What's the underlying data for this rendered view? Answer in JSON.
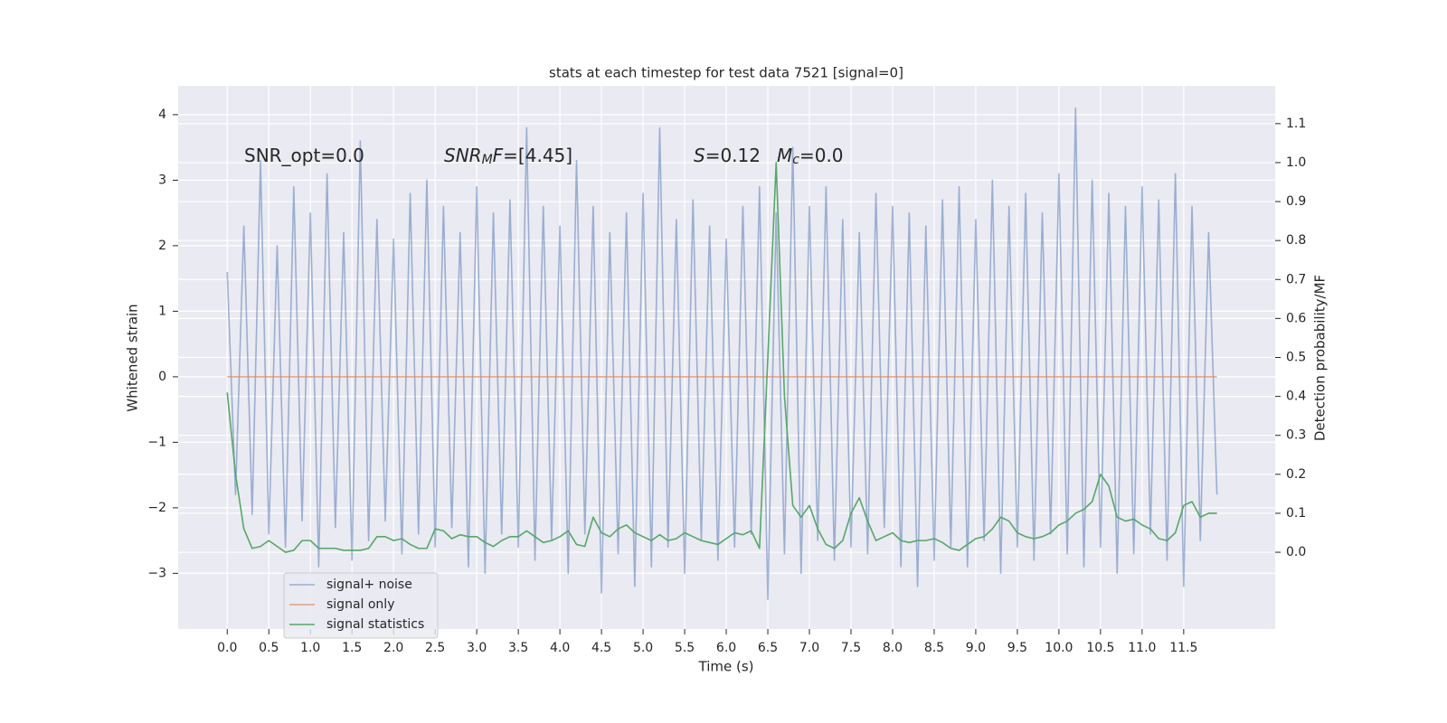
{
  "chart_data": {
    "type": "line",
    "title": "stats at each timestep for test data 7521 [signal=0]",
    "xlabel": "Time (s)",
    "ylabel": "Whitened strain",
    "y2label": "Detection probability/MF",
    "x": [
      0,
      0.1,
      0.2,
      0.3,
      0.4,
      0.5,
      0.6,
      0.7,
      0.8,
      0.9,
      1,
      1.1,
      1.2,
      1.3,
      1.4,
      1.5,
      1.6,
      1.7,
      1.8,
      1.9,
      2,
      2.1,
      2.2,
      2.3,
      2.4,
      2.5,
      2.6,
      2.7,
      2.8,
      2.9,
      3,
      3.1,
      3.2,
      3.3,
      3.4,
      3.5,
      3.6,
      3.7,
      3.8,
      3.9,
      4,
      4.1,
      4.2,
      4.3,
      4.4,
      4.5,
      4.6,
      4.7,
      4.8,
      4.9,
      5,
      5.1,
      5.2,
      5.3,
      5.4,
      5.5,
      5.6,
      5.7,
      5.8,
      5.9,
      6,
      6.1,
      6.2,
      6.3,
      6.4,
      6.5,
      6.6,
      6.7,
      6.8,
      6.9,
      7,
      7.1,
      7.2,
      7.3,
      7.4,
      7.5,
      7.6,
      7.7,
      7.8,
      7.9,
      8,
      8.1,
      8.2,
      8.3,
      8.4,
      8.5,
      8.6,
      8.7,
      8.8,
      8.9,
      9,
      9.1,
      9.2,
      9.3,
      9.4,
      9.5,
      9.6,
      9.7,
      9.8,
      9.9,
      10,
      10.1,
      10.2,
      10.3,
      10.4,
      10.5,
      10.6,
      10.7,
      10.8,
      10.9,
      11,
      11.1,
      11.2,
      11.3,
      11.4,
      11.5,
      11.6,
      11.7,
      11.8,
      11.9
    ],
    "series": [
      {
        "name": "signal+ noise",
        "color": "#4c72b0",
        "alpha": 0.5,
        "values": [
          1.6,
          -1.8,
          2.3,
          -2.1,
          3.3,
          -2.4,
          2.0,
          -2.6,
          2.9,
          -2.2,
          2.5,
          -2.9,
          3.1,
          -2.3,
          2.2,
          -2.8,
          3.6,
          -2.5,
          2.4,
          -2.2,
          2.1,
          -2.7,
          2.8,
          -2.4,
          3.0,
          -2.6,
          2.6,
          -2.3,
          2.2,
          -2.9,
          2.9,
          -3.0,
          2.5,
          -2.4,
          2.7,
          -2.6,
          3.8,
          -2.8,
          2.6,
          -2.5,
          2.3,
          -3.0,
          3.3,
          -2.4,
          2.6,
          -3.3,
          2.2,
          -2.7,
          2.5,
          -3.2,
          2.8,
          -2.9,
          3.8,
          -2.6,
          2.4,
          -3.0,
          2.7,
          -2.5,
          2.3,
          -2.8,
          2.1,
          -2.6,
          2.6,
          -2.4,
          2.9,
          -3.4,
          2.5,
          -2.7,
          3.5,
          -3.0,
          2.6,
          -2.5,
          2.9,
          -2.8,
          2.4,
          -2.6,
          2.2,
          -2.7,
          2.8,
          -2.3,
          2.6,
          -2.9,
          2.5,
          -3.2,
          2.3,
          -2.8,
          2.7,
          -2.6,
          2.9,
          -2.9,
          2.4,
          -2.5,
          3.0,
          -3.0,
          2.6,
          -2.6,
          2.8,
          -2.8,
          2.5,
          -2.4,
          3.1,
          -2.7,
          4.1,
          -2.9,
          3.0,
          -2.6,
          2.8,
          -3.0,
          2.6,
          -2.7,
          2.9,
          -2.4,
          2.7,
          -2.8,
          3.1,
          -3.2,
          2.6,
          -2.5,
          2.2,
          -1.8
        ]
      },
      {
        "name": "signal only",
        "color": "#dd8452",
        "alpha": 0.7,
        "values": [
          0,
          0,
          0,
          0,
          0,
          0,
          0,
          0,
          0,
          0,
          0,
          0,
          0,
          0,
          0,
          0,
          0,
          0,
          0,
          0,
          0,
          0,
          0,
          0,
          0,
          0,
          0,
          0,
          0,
          0,
          0,
          0,
          0,
          0,
          0,
          0,
          0,
          0,
          0,
          0,
          0,
          0,
          0,
          0,
          0,
          0,
          0,
          0,
          0,
          0,
          0,
          0,
          0,
          0,
          0,
          0,
          0,
          0,
          0,
          0,
          0,
          0,
          0,
          0,
          0,
          0,
          0,
          0,
          0,
          0,
          0,
          0,
          0,
          0,
          0,
          0,
          0,
          0,
          0,
          0,
          0,
          0,
          0,
          0,
          0,
          0,
          0,
          0,
          0,
          0,
          0,
          0,
          0,
          0,
          0,
          0,
          0,
          0,
          0,
          0,
          0,
          0,
          0,
          0,
          0,
          0,
          0,
          0,
          0,
          0,
          0,
          0,
          0,
          0,
          0,
          0,
          0,
          0,
          0,
          0
        ]
      },
      {
        "name": "signal statistics",
        "color": "#55a868",
        "alpha": 1,
        "axis": "y2",
        "values": [
          0.41,
          0.2,
          0.06,
          0.01,
          0.015,
          0.03,
          0.015,
          0.0,
          0.005,
          0.03,
          0.03,
          0.01,
          0.01,
          0.01,
          0.005,
          0.005,
          0.005,
          0.01,
          0.04,
          0.04,
          0.03,
          0.035,
          0.02,
          0.01,
          0.01,
          0.06,
          0.055,
          0.035,
          0.045,
          0.04,
          0.04,
          0.025,
          0.015,
          0.03,
          0.04,
          0.04,
          0.055,
          0.04,
          0.025,
          0.03,
          0.04,
          0.055,
          0.02,
          0.015,
          0.09,
          0.05,
          0.04,
          0.06,
          0.07,
          0.05,
          0.04,
          0.03,
          0.045,
          0.03,
          0.035,
          0.05,
          0.04,
          0.03,
          0.025,
          0.02,
          0.035,
          0.05,
          0.045,
          0.055,
          0.01,
          0.5,
          1.0,
          0.4,
          0.12,
          0.09,
          0.12,
          0.06,
          0.02,
          0.01,
          0.03,
          0.1,
          0.14,
          0.08,
          0.03,
          0.04,
          0.05,
          0.03,
          0.025,
          0.03,
          0.03,
          0.035,
          0.025,
          0.01,
          0.005,
          0.02,
          0.035,
          0.04,
          0.06,
          0.09,
          0.08,
          0.05,
          0.04,
          0.035,
          0.04,
          0.05,
          0.07,
          0.08,
          0.1,
          0.11,
          0.13,
          0.2,
          0.17,
          0.09,
          0.08,
          0.085,
          0.07,
          0.06,
          0.035,
          0.03,
          0.05,
          0.12,
          0.13,
          0.09,
          0.1,
          0.1
        ]
      }
    ],
    "xlim": [
      -0.59,
      12.6
    ],
    "xticks": [
      {
        "value": 0,
        "label": "0.0"
      },
      0.5,
      {
        "value": 1,
        "label": "1.0"
      },
      1.5,
      {
        "value": 2,
        "label": "2.0"
      },
      2.5,
      {
        "value": 3,
        "label": "3.0"
      },
      3.5,
      {
        "value": 4,
        "label": "4.0"
      },
      4.5,
      {
        "value": 5,
        "label": "5.0"
      },
      5.5,
      {
        "value": 6,
        "label": "6.0"
      },
      6.5,
      {
        "value": 7,
        "label": "7.0"
      },
      7.5,
      {
        "value": 8,
        "label": "8.0"
      },
      8.5,
      {
        "value": 9,
        "label": "9.0"
      },
      9.5,
      {
        "value": 10,
        "label": "10.0"
      },
      10.5,
      {
        "value": 11,
        "label": "11.0"
      },
      11.5
    ],
    "ylim": [
      -3.85,
      4.44
    ],
    "yticks": [
      {
        "value": -3,
        "label": "−3"
      },
      {
        "value": -2,
        "label": "−2"
      },
      {
        "value": -1,
        "label": "−1"
      },
      0,
      1,
      2,
      3,
      4
    ],
    "y2lim": [
      -0.197,
      1.197
    ],
    "y2ticks": [
      {
        "value": 0,
        "label": "0.0"
      },
      0.1,
      0.2,
      0.3,
      0.4,
      0.5,
      0.6,
      0.7,
      0.8,
      0.9,
      {
        "value": 1,
        "label": "1.0"
      },
      1.1
    ],
    "grid": true,
    "legend": "lower left",
    "annotations": [
      [
        {
          "text": "SNR_opt=0.0"
        }
      ],
      [
        {
          "text": "SNR",
          "italic": true
        },
        {
          "text": "M",
          "italic": true,
          "sub": true
        },
        {
          "text": "F",
          "italic": true
        },
        {
          "text": "=[4.45]"
        }
      ],
      [
        {
          "text": "S",
          "italic": true
        },
        {
          "text": "=0.12"
        }
      ],
      [
        {
          "text": "M",
          "italic": true
        },
        {
          "text": "c",
          "italic": true,
          "sub": true
        },
        {
          "text": "=0.0"
        }
      ]
    ]
  }
}
